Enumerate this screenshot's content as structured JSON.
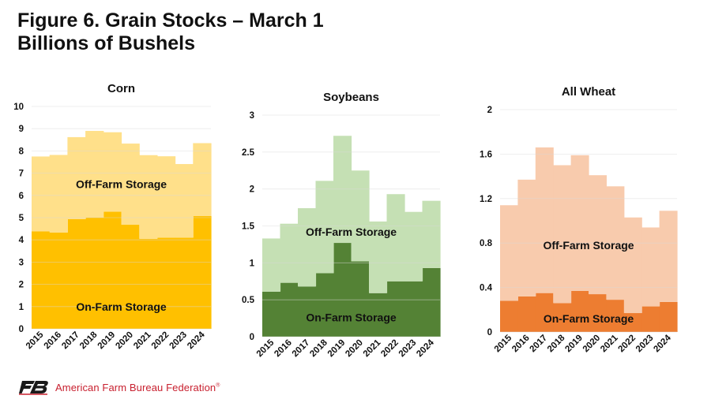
{
  "header": {
    "title_line1": "Figure 6. Grain Stocks – March 1",
    "title_line2": "Billions of Bushels"
  },
  "footer": {
    "org_name": "American Farm Bureau Federation",
    "trademark": "®",
    "logo_icon": "farm-bureau-logo-icon",
    "brand_color": "#c8202f"
  },
  "chart_data": [
    {
      "type": "area",
      "stacked": true,
      "step": true,
      "title": "Corn",
      "x": [
        "2015",
        "2016",
        "2017",
        "2018",
        "2019",
        "2020",
        "2021",
        "2022",
        "2023",
        "2024"
      ],
      "ylim": [
        0,
        10
      ],
      "yticks": [
        "0",
        "1",
        "2",
        "3",
        "4",
        "5",
        "6",
        "7",
        "8",
        "9",
        "10"
      ],
      "grid": true,
      "series": [
        {
          "name": "On-Farm Storage",
          "color": "#ffc000",
          "values": [
            4.38,
            4.33,
            4.93,
            5.0,
            5.27,
            4.68,
            4.05,
            4.1,
            4.1,
            5.07
          ]
        },
        {
          "name": "Off-Farm Storage",
          "color": "#ffe08a",
          "values": [
            3.37,
            3.49,
            3.69,
            3.9,
            3.57,
            3.65,
            3.76,
            3.66,
            3.31,
            3.28
          ]
        }
      ]
    },
    {
      "type": "area",
      "stacked": true,
      "step": true,
      "title": "Soybeans",
      "x": [
        "2015",
        "2016",
        "2017",
        "2018",
        "2019",
        "2020",
        "2021",
        "2022",
        "2023",
        "2024"
      ],
      "ylim": [
        0,
        3
      ],
      "yticks": [
        "0",
        "0.5",
        "1",
        "1.5",
        "2",
        "2.5",
        "3"
      ],
      "grid": true,
      "series": [
        {
          "name": "On-Farm Storage",
          "color": "#548235",
          "values": [
            0.61,
            0.73,
            0.68,
            0.86,
            1.27,
            1.02,
            0.59,
            0.75,
            0.75,
            0.93
          ]
        },
        {
          "name": "Off-Farm Storage",
          "color": "#c5e0b4",
          "values": [
            0.72,
            0.8,
            1.06,
            1.25,
            1.45,
            1.23,
            0.97,
            1.18,
            0.94,
            0.91
          ]
        }
      ]
    },
    {
      "type": "area",
      "stacked": true,
      "step": true,
      "title": "All Wheat",
      "x": [
        "2015",
        "2016",
        "2017",
        "2018",
        "2019",
        "2020",
        "2021",
        "2022",
        "2023",
        "2024"
      ],
      "ylim": [
        0,
        2
      ],
      "yticks": [
        "0",
        "0.4",
        "0.8",
        "1.2",
        "1.6",
        "2"
      ],
      "grid": true,
      "series": [
        {
          "name": "On-Farm Storage",
          "color": "#ed7d31",
          "values": [
            0.28,
            0.32,
            0.35,
            0.26,
            0.37,
            0.34,
            0.29,
            0.17,
            0.23,
            0.27
          ]
        },
        {
          "name": "Off-Farm Storage",
          "color": "#f8cbad",
          "values": [
            0.86,
            1.05,
            1.31,
            1.24,
            1.22,
            1.07,
            1.02,
            0.86,
            0.71,
            0.82
          ]
        }
      ]
    }
  ]
}
